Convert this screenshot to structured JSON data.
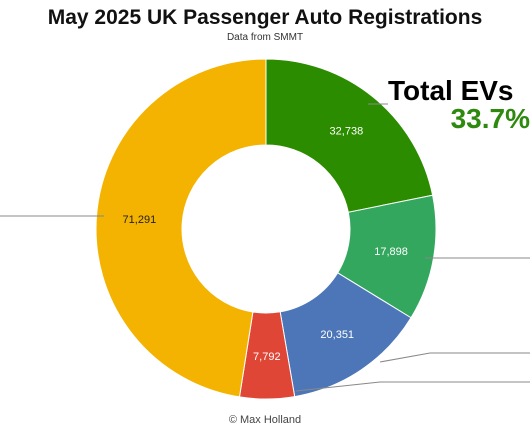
{
  "chart_data": {
    "type": "pie",
    "title": "May 2025 UK Passenger Auto Registrations",
    "subtitle": "Data from SMMT",
    "categories": [
      "",
      "",
      "",
      "",
      ""
    ],
    "values": [
      32738,
      17898,
      20351,
      7792,
      71291
    ],
    "value_labels": [
      "32,738",
      "17,898",
      "20,351",
      "7,792",
      "71,291"
    ],
    "colors": [
      "#2b8c00",
      "#33a75e",
      "#4c76b8",
      "#e04636",
      "#f4b300"
    ],
    "donut": true,
    "annotation": {
      "label": "Total EVs",
      "value": "33.7%",
      "value_color": "#2e8a0e"
    },
    "credit": "© Max Holland"
  }
}
